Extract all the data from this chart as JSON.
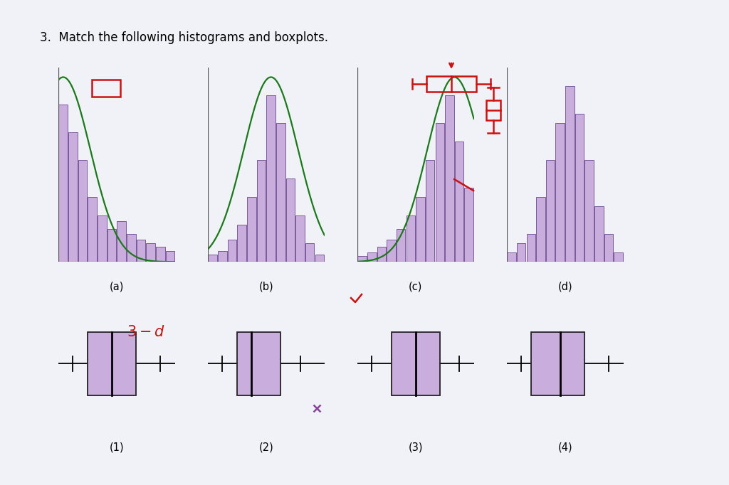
{
  "title": "3.  Match the following histograms and boxplots.",
  "title_fontsize": 12,
  "bg_color": "#f0f2f7",
  "hist_color": "#c9aedd",
  "hist_edge_color": "#7a5a9a",
  "curve_color": "#1a7a1a",
  "box_color": "#c9aedd",
  "box_edge_color": "#222222",
  "red_color": "#cc1111",
  "hist_a_bars": [
    8.5,
    7.0,
    5.5,
    3.5,
    2.5,
    1.8,
    2.2,
    1.5,
    1.2,
    1.0,
    0.8,
    0.6
  ],
  "hist_b_bars": [
    0.4,
    0.6,
    1.2,
    2.0,
    3.5,
    5.5,
    9.0,
    7.5,
    4.5,
    2.5,
    1.0,
    0.4
  ],
  "hist_c_bars": [
    0.3,
    0.5,
    0.8,
    1.2,
    1.8,
    2.5,
    3.5,
    5.5,
    7.5,
    9.0,
    6.5,
    4.0
  ],
  "hist_d_bars": [
    0.5,
    1.0,
    1.5,
    3.5,
    5.5,
    7.5,
    9.5,
    8.0,
    5.5,
    3.0,
    1.5,
    0.5
  ],
  "labels_hist": [
    "(a)",
    "(b)",
    "(c)",
    "(d)"
  ],
  "labels_box": [
    "(1)",
    "(2)",
    "(3)",
    "(4)"
  ],
  "box1": {
    "wl": 1.5,
    "q1": 3.0,
    "med": 5.5,
    "q3": 8.0,
    "wr": 10.5,
    "xmin": 0,
    "xmax": 12
  },
  "box2": {
    "wl": 1.5,
    "q1": 3.0,
    "med": 4.5,
    "q3": 7.5,
    "wr": 9.5,
    "xmin": 0,
    "xmax": 12,
    "outlier": 11.2
  },
  "box3": {
    "wl": 1.5,
    "q1": 3.5,
    "med": 6.0,
    "q3": 8.5,
    "wr": 10.5,
    "xmin": 0,
    "xmax": 12
  },
  "box4": {
    "wl": 1.5,
    "q1": 2.5,
    "med": 5.5,
    "q3": 8.0,
    "wr": 10.5,
    "xmin": 0,
    "xmax": 12
  }
}
